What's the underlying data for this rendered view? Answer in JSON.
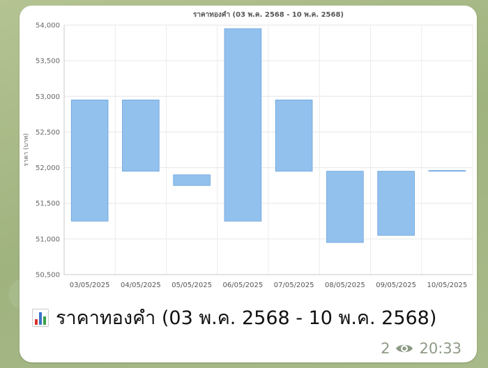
{
  "message": {
    "caption_emoji": "bar-chart-emoji",
    "caption": "ราคาทองคำ (03 พ.ค. 2568 - 10 พ.ค. 2568)",
    "views": "2",
    "time": "20:33"
  },
  "colors": {
    "bar_fill": "#92c1ee",
    "bar_stroke": "#6aa3db",
    "background": "#a6b887"
  },
  "chart_data": {
    "type": "bar",
    "subtype": "floating-range",
    "title": "ราคาทองคำ (03 พ.ค. 2568 - 10 พ.ค. 2568)",
    "xlabel": "",
    "ylabel": "ราคา (บาท)",
    "ylim": [
      50500,
      54000
    ],
    "yticks": [
      50500,
      51000,
      51500,
      52000,
      52500,
      53000,
      53500,
      54000
    ],
    "ytick_labels": [
      "50,500",
      "51,000",
      "51,500",
      "52,000",
      "52,500",
      "53,000",
      "53,500",
      "54,000"
    ],
    "grid": true,
    "categories": [
      "03/05/2025",
      "04/05/2025",
      "05/05/2025",
      "06/05/2025",
      "07/05/2025",
      "08/05/2025",
      "09/05/2025",
      "10/05/2025"
    ],
    "ranges": [
      [
        51250,
        52950
      ],
      [
        51950,
        52950
      ],
      [
        51750,
        51900
      ],
      [
        51250,
        53950
      ],
      [
        51950,
        52950
      ],
      [
        50950,
        51950
      ],
      [
        51050,
        51950
      ],
      [
        51950,
        51960
      ]
    ]
  }
}
